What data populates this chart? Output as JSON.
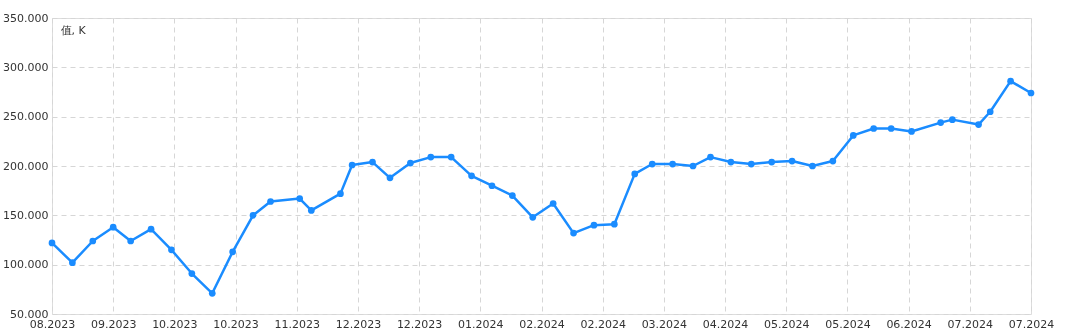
{
  "chart_data": {
    "type": "line",
    "ylabel": "值, K",
    "x": [
      "2023-08-24",
      "2023-08-31",
      "2023-09-07",
      "2023-09-14",
      "2023-09-20",
      "2023-09-27",
      "2023-10-04",
      "2023-10-11",
      "2023-10-18",
      "2023-10-25",
      "2023-11-01",
      "2023-11-07",
      "2023-11-17",
      "2023-11-21",
      "2023-12-01",
      "2023-12-05",
      "2023-12-12",
      "2023-12-18",
      "2023-12-25",
      "2024-01-01",
      "2024-01-08",
      "2024-01-15",
      "2024-01-22",
      "2024-01-29",
      "2024-02-05",
      "2024-02-12",
      "2024-02-19",
      "2024-02-26",
      "2024-03-04",
      "2024-03-11",
      "2024-03-17",
      "2024-03-24",
      "2024-03-31",
      "2024-04-06",
      "2024-04-13",
      "2024-04-20",
      "2024-04-27",
      "2024-05-04",
      "2024-05-11",
      "2024-05-18",
      "2024-05-25",
      "2024-06-01",
      "2024-06-07",
      "2024-06-14",
      "2024-06-24",
      "2024-06-28",
      "2024-07-07",
      "2024-07-11",
      "2024-07-18",
      "2024-07-25"
    ],
    "series": [
      {
        "color": "#1a8cff",
        "values": [
          122,
          102,
          124,
          138,
          124,
          136,
          115,
          91,
          71,
          113,
          150,
          164,
          167,
          155,
          172,
          201,
          204,
          188,
          203,
          209,
          209,
          190,
          180,
          170,
          148,
          162,
          132,
          140,
          141,
          192,
          202,
          202,
          200,
          209,
          204,
          202,
          204,
          205,
          200,
          205,
          231,
          238,
          238,
          235,
          244,
          247,
          242,
          255,
          286,
          274
        ]
      }
    ],
    "xlim": [
      "2023-08-24",
      "2024-07-25"
    ],
    "xticks": [
      {
        "value": "2023-08-24",
        "label": "08.2023"
      },
      {
        "value": "2023-09-14",
        "label": "09.2023"
      },
      {
        "value": "2023-10-05",
        "label": "10.2023"
      },
      {
        "value": "2023-10-26",
        "label": "10.2023"
      },
      {
        "value": "2023-11-16",
        "label": "11.2023"
      },
      {
        "value": "2023-12-07",
        "label": "12.2023"
      },
      {
        "value": "2023-12-28",
        "label": "12.2023"
      },
      {
        "value": "2024-01-18",
        "label": "01.2024"
      },
      {
        "value": "2024-02-08",
        "label": "02.2024"
      },
      {
        "value": "2024-02-29",
        "label": "02.2024"
      },
      {
        "value": "2024-03-21",
        "label": "03.2024"
      },
      {
        "value": "2024-04-11",
        "label": "04.2024"
      },
      {
        "value": "2024-05-02",
        "label": "05.2024"
      },
      {
        "value": "2024-05-23",
        "label": "05.2024"
      },
      {
        "value": "2024-06-13",
        "label": "06.2024"
      },
      {
        "value": "2024-07-04",
        "label": "07.2024"
      },
      {
        "value": "2024-07-25",
        "label": "07.2024"
      }
    ],
    "ylim": [
      50,
      350
    ],
    "yticks": [
      {
        "value": 50,
        "label": "50.000"
      },
      {
        "value": 100,
        "label": "100.000"
      },
      {
        "value": 150,
        "label": "150.000"
      },
      {
        "value": 200,
        "label": "200.000"
      },
      {
        "value": 250,
        "label": "250.000"
      },
      {
        "value": 300,
        "label": "300.000"
      },
      {
        "value": 350,
        "label": "350.000"
      }
    ],
    "grid": true,
    "marker": "circle",
    "line_style": "solid"
  }
}
